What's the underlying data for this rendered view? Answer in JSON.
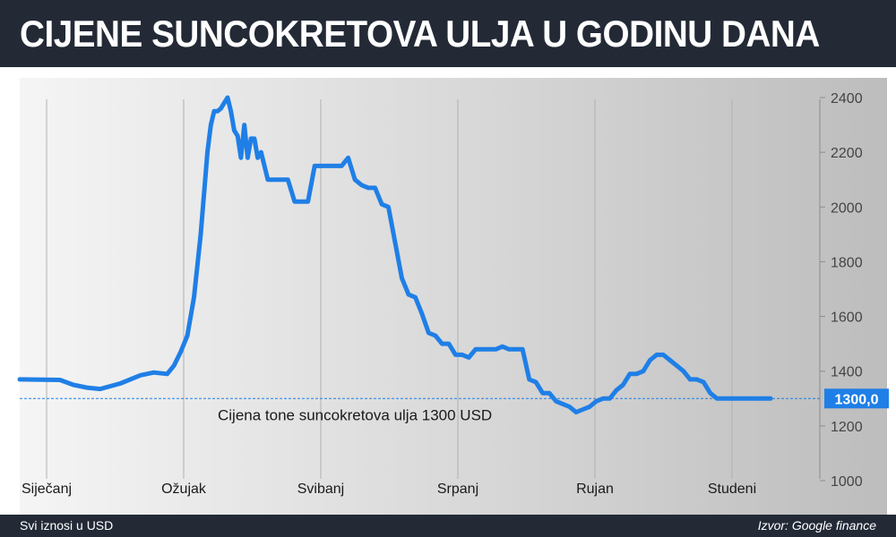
{
  "header": {
    "title": "CIJENE SUNCOKRETOVA ULJA U GODINU DANA"
  },
  "footer": {
    "note": "Svi iznosi u USD",
    "source": "Izvor: Google finance"
  },
  "colors": {
    "line": "#1f7fe6",
    "header_bg": "#232a36",
    "reference": "#1f7fe6",
    "grid": "#b0b0b0"
  },
  "chart_data": {
    "type": "line",
    "title": "CIJENE SUNCOKRETOVA ULJA U GODINU DANA",
    "xlabel": "",
    "ylabel": "",
    "ylim": [
      1000,
      2400
    ],
    "y_ticks": [
      1000,
      1200,
      1400,
      1600,
      1800,
      2000,
      2200,
      2400
    ],
    "x_tick_labels": [
      "Siječanj",
      "Ožujak",
      "Svibanj",
      "Srpanj",
      "Rujan",
      "Studeni"
    ],
    "x_tick_months": [
      1,
      3,
      5,
      7,
      9,
      11
    ],
    "xlim": [
      0.8,
      12.6
    ],
    "grid": true,
    "y_axis_side": "right",
    "series": [
      {
        "x": [
          0.8,
          1.4,
          1.6,
          1.8,
          2.0,
          2.3,
          2.6,
          2.8,
          3.0,
          3.1,
          3.2,
          3.3,
          3.4,
          3.5,
          3.6,
          3.65,
          3.7,
          3.75,
          3.8,
          3.85,
          3.9,
          3.95,
          4.0,
          4.05,
          4.1,
          4.15,
          4.2,
          4.25,
          4.3,
          4.35,
          4.4,
          4.5,
          4.6,
          4.7,
          4.8,
          4.9,
          5.0,
          5.1,
          5.2,
          5.3,
          5.4,
          5.5,
          5.6,
          5.7,
          5.8,
          5.9,
          6.0,
          6.1,
          6.2,
          6.3,
          6.4,
          6.5,
          6.6,
          6.7,
          6.8,
          6.9,
          7.0,
          7.1,
          7.2,
          7.3,
          7.4,
          7.5,
          7.6,
          7.7,
          7.8,
          7.9,
          8.0,
          8.1,
          8.2,
          8.3,
          8.4,
          8.5,
          8.6,
          8.7,
          8.8,
          8.9,
          9.0,
          9.1,
          9.2,
          9.3,
          9.4,
          9.5,
          9.6,
          9.7,
          9.8,
          9.9,
          10.0,
          10.1,
          10.2,
          10.3,
          10.4,
          10.5,
          10.6,
          10.7,
          10.8,
          10.9,
          11.0,
          11.1,
          11.2,
          11.3,
          11.4,
          11.5,
          11.6,
          11.7,
          11.8,
          11.9,
          12.0
        ],
        "y": [
          1370,
          1368,
          1350,
          1340,
          1335,
          1355,
          1385,
          1395,
          1390,
          1420,
          1470,
          1530,
          1670,
          1900,
          2200,
          2300,
          2350,
          2350,
          2360,
          2380,
          2400,
          2350,
          2280,
          2260,
          2180,
          2300,
          2180,
          2250,
          2250,
          2180,
          2200,
          2100,
          2100,
          2100,
          2100,
          2020,
          2020,
          2020,
          2150,
          2150,
          2150,
          2150,
          2150,
          2180,
          2100,
          2080,
          2070,
          2070,
          2010,
          2000,
          1870,
          1740,
          1680,
          1670,
          1610,
          1540,
          1530,
          1500,
          1500,
          1460,
          1460,
          1450,
          1480,
          1480,
          1480,
          1480,
          1490,
          1480,
          1480,
          1480,
          1370,
          1360,
          1320,
          1320,
          1290,
          1280,
          1270,
          1250,
          1260,
          1270,
          1290,
          1300,
          1300,
          1330,
          1350,
          1390,
          1390,
          1400,
          1440,
          1460,
          1460,
          1440,
          1420,
          1400,
          1370,
          1370,
          1360,
          1320,
          1300,
          1300,
          1300,
          1300,
          1300,
          1300,
          1300,
          1300,
          1300
        ]
      }
    ],
    "annotations": {
      "reference_value": 1300,
      "reference_label": "Cijena tone suncokretova ulja 1300 USD",
      "last_value_label": "1300,0"
    }
  }
}
